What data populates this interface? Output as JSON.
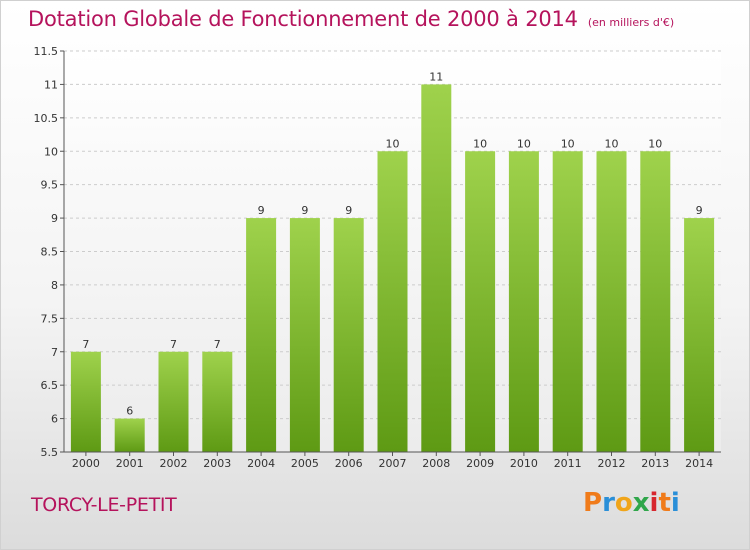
{
  "header": {
    "title": "Dotation Globale de Fonctionnement de 2000 à 2014",
    "unit": "(en milliers d'€)"
  },
  "footer": {
    "commune": "TORCY-LE-PETIT",
    "logo_letters": [
      "P",
      "r",
      "o",
      "x",
      "i",
      "t",
      "i"
    ]
  },
  "chart_data": {
    "type": "bar",
    "title": "Dotation Globale de Fonctionnement de 2000 à 2014",
    "subtitle": "(en milliers d'€)",
    "xlabel": "",
    "ylabel": "",
    "categories": [
      "2000",
      "2001",
      "2002",
      "2003",
      "2004",
      "2005",
      "2006",
      "2007",
      "2008",
      "2009",
      "2010",
      "2011",
      "2012",
      "2013",
      "2014"
    ],
    "values": [
      7,
      6,
      7,
      7,
      9,
      9,
      9,
      10,
      11,
      10,
      10,
      10,
      10,
      10,
      9
    ],
    "labels": [
      "7",
      "6",
      "7",
      "7",
      "9",
      "9",
      "9",
      "10",
      "11",
      "10",
      "10",
      "10",
      "10",
      "10",
      "9"
    ],
    "yticks": [
      "5.5",
      "6",
      "6.5",
      "7",
      "7.5",
      "8",
      "8.5",
      "9",
      "9.5",
      "10",
      "10.5",
      "11",
      "11.5"
    ],
    "ylim": [
      5.5,
      11.5
    ],
    "grid": true,
    "colors": {
      "bar_top": "#9fd24c",
      "bar_bottom": "#5e9a14",
      "grid": "#cccccc"
    }
  }
}
